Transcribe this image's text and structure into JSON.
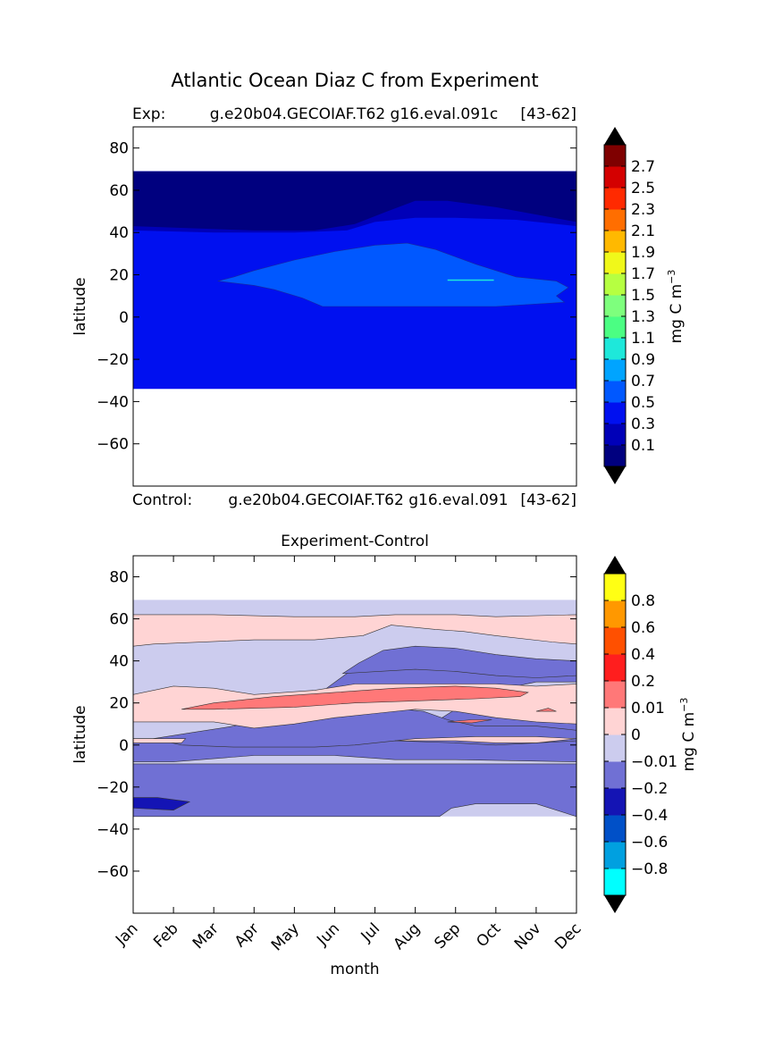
{
  "figure": {
    "suptitle": "Atlantic Ocean Diaz C from Experiment",
    "colors": {
      "land_or_missing": "#ffffff",
      "axis": "#000000",
      "contour_line": "#333333"
    }
  },
  "chart_data": [
    {
      "type": "filled-contour",
      "panel": "experiment",
      "title_left": "Exp:",
      "title_center": "g.e20b04.GECOIAF.T62 g16.eval.091c",
      "title_right": "[43-62]",
      "xlabel": "",
      "ylabel": "latitude",
      "xlim": [
        1,
        12
      ],
      "ylim": [
        -80,
        90
      ],
      "yticks": [
        -60,
        -40,
        -20,
        0,
        20,
        40,
        60,
        80
      ],
      "data_lat_range": [
        -34,
        69
      ],
      "colorbar": {
        "label": "mg C m",
        "label_exponent": "−3",
        "extend": "both",
        "tick_labels": [
          "0.1",
          "0.3",
          "0.5",
          "0.7",
          "0.9",
          "1.1",
          "1.3",
          "1.5",
          "1.7",
          "1.9",
          "2.1",
          "2.3",
          "2.5",
          "2.7"
        ],
        "colors": [
          "#00007f",
          "#0000b8",
          "#0010f0",
          "#0058ff",
          "#00a4ff",
          "#1ee8da",
          "#4bfe83",
          "#7eff7d",
          "#b6ff41",
          "#f0f81a",
          "#ffb900",
          "#ff6e00",
          "#ff2a00",
          "#d40000",
          "#7f0000"
        ],
        "under_color": "#000000",
        "over_color": "#000000"
      },
      "regions": [
        {
          "level": "0.3-0.5",
          "color": "#0010f0",
          "lat_min": -34,
          "lat_max": 40,
          "months": [
            1,
            12
          ]
        },
        {
          "level": "0.1-0.3",
          "color": "#0000b8",
          "lat_min": 40,
          "lat_max": 69,
          "months": [
            1,
            12
          ],
          "note": "band near 40-55N"
        },
        {
          "level": "0.5-0.7",
          "color": "#0058ff",
          "lat_min": 5,
          "lat_max": 35,
          "months": [
            3,
            11.8
          ]
        },
        {
          "level": "<0.1",
          "color": "#00007f",
          "lat_min": 45,
          "lat_max": 69,
          "months": [
            1,
            12
          ]
        }
      ]
    },
    {
      "type": "filled-contour",
      "panel": "difference",
      "title_above_left": "Control:",
      "title_above_center": "g.e20b04.GECOIAF.T62 g16.eval.091",
      "title_above_right": "[43-62]",
      "title": "Experiment-Control",
      "xlabel": "month",
      "ylabel": "latitude",
      "xlim": [
        1,
        12
      ],
      "ylim": [
        -80,
        90
      ],
      "yticks": [
        -60,
        -40,
        -20,
        0,
        20,
        40,
        60,
        80
      ],
      "xticks": [
        "Jan",
        "Feb",
        "Mar",
        "Apr",
        "May",
        "Jun",
        "Jul",
        "Aug",
        "Sep",
        "Oct",
        "Nov",
        "Dec"
      ],
      "data_lat_range": [
        -34,
        69
      ],
      "colorbar": {
        "label": "mg C m",
        "label_exponent": "−3",
        "extend": "both",
        "tick_labels": [
          "-0.8",
          "-0.6",
          "-0.4",
          "-0.2",
          "-0.01",
          "0",
          "0.01",
          "0.2",
          "0.4",
          "0.6",
          "0.8"
        ],
        "colors": [
          "#00ffff",
          "#00a0e0",
          "#0050c8",
          "#1414b4",
          "#7070d4",
          "#ccccee",
          "#ffd4d4",
          "#ff7878",
          "#ff1e1e",
          "#ff5000",
          "#ff9800",
          "#ffff14"
        ],
        "under_color": "#000000",
        "over_color": "#000000"
      },
      "regions": [
        {
          "level": "-0.01-0",
          "color": "#ccccee",
          "lat_min": -34,
          "lat_max": 69,
          "months": [
            1,
            12
          ]
        },
        {
          "level": "0-0.01",
          "color": "#ffd4d4",
          "lat_min": 50,
          "lat_max": 62,
          "months": [
            1,
            12
          ]
        },
        {
          "level": "-0.2--0.01",
          "color": "#7070d4",
          "lat_min": -34,
          "lat_max": 47,
          "months": [
            1,
            12
          ]
        },
        {
          "level": "0.01-0.2",
          "color": "#ff7878",
          "lat_min": 17,
          "lat_max": 29,
          "months": [
            2.2,
            10.8
          ]
        },
        {
          "level": "-0.4--0.2",
          "color": "#1414b4",
          "lat_min": -31,
          "lat_max": -25,
          "months": [
            1,
            2
          ]
        }
      ]
    }
  ]
}
